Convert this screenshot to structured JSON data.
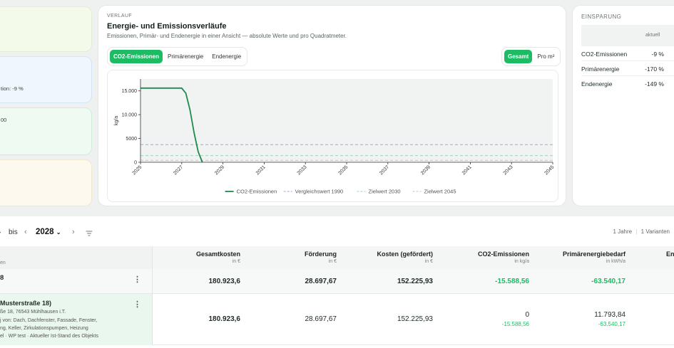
{
  "left_panels": {
    "status_text": "tion: -9 %",
    "value_text": "00"
  },
  "verlauf": {
    "eyebrow": "VERLAUF",
    "title": "Energie- und Emissionsverläufe",
    "subtitle": "Emissionen, Primär- und Endenergie in einer Ansicht — absolute Werte und pro Quadratmeter.",
    "metric_tabs": [
      "CO2-Emissionen",
      "Primärenergie",
      "Endenergie"
    ],
    "active_metric": 0,
    "scope_tabs": [
      "Gesamt",
      "Pro m²"
    ],
    "active_scope": 0
  },
  "chart_data": {
    "type": "line",
    "ylabel": "kg/a",
    "xlabel": "",
    "ylim": [
      0,
      17500
    ],
    "yticks": [
      0,
      5000,
      10000,
      15000
    ],
    "ytick_labels": [
      "0",
      "5000",
      "10.000",
      "15.000"
    ],
    "xlim": [
      2025,
      2045
    ],
    "xticks": [
      2025,
      2027,
      2029,
      2031,
      2033,
      2035,
      2037,
      2039,
      2041,
      2043,
      2045
    ],
    "grid": false,
    "legend": "bottom",
    "series": [
      {
        "name": "CO2-Emissionen",
        "color": "#1e8a4c",
        "style": "solid",
        "x": [
          2025,
          2027,
          2027.2,
          2027.4,
          2027.6,
          2027.8,
          2028
        ],
        "y": [
          15589,
          15589,
          14500,
          11000,
          6200,
          2200,
          0
        ]
      },
      {
        "name": "Vergleichswert 1990",
        "color": "#9aa8e6",
        "style": "dashed",
        "x": [
          2025,
          2045
        ],
        "y": [
          3700,
          3700
        ]
      },
      {
        "name": "Zielwert 2030",
        "color": "#9fd7b6",
        "style": "dashed",
        "x": [
          2025,
          2045
        ],
        "y": [
          1400,
          1400
        ]
      },
      {
        "name": "Zielwert 2045",
        "color": "#c2c7c4",
        "style": "dashed",
        "x": [
          2025,
          2045
        ],
        "y": [
          400,
          400
        ]
      }
    ]
  },
  "einsparung": {
    "eyebrow": "EINSPARUNG",
    "col_header": "aktuell",
    "rows": [
      {
        "label": "CO2-Emissionen",
        "value": "-9 %"
      },
      {
        "label": "Primärenergie",
        "value": "-170 %"
      },
      {
        "label": "Endenergie",
        "value": "-149 %"
      }
    ]
  },
  "filter": {
    "bis": "bis",
    "year": "2028",
    "summary_years": "1 Jahre",
    "summary_variants": "1 Varianten"
  },
  "table": {
    "first_col_sub": "en",
    "columns": [
      {
        "title": "Gesamtkosten",
        "unit": "in €"
      },
      {
        "title": "Förderung",
        "unit": "in €"
      },
      {
        "title": "Kosten (gefördert)",
        "unit": "in €"
      },
      {
        "title": "CO2-Emissionen",
        "unit": "in kg/a"
      },
      {
        "title": "Primärenergiebedarf",
        "unit": "in kWh/a"
      },
      {
        "title": "En",
        "unit": ""
      }
    ],
    "row1": {
      "name": "8",
      "values": [
        "180.923,6",
        "28.697,67",
        "152.225,93",
        "-15.588,56",
        "-63.540,17"
      ]
    },
    "row2": {
      "name": "Musterstraße 18)",
      "address": "ße 18, 76543 Mühlhausen i.T.",
      "line2": "j von: Dach, Dachfenster, Fassade, Fenster,",
      "line3": "ng, Keller, Zirkulationspumpen, Heizung",
      "line4": "el · WP test · Aktueller Ist-Stand des Objekts",
      "values": [
        "180.923,6",
        "28.697,67",
        "152.225,93"
      ],
      "co2_main": "0",
      "co2_delta": "-15.588,56",
      "pe_main": "11.793,84",
      "pe_delta": "-63.540,17"
    }
  }
}
